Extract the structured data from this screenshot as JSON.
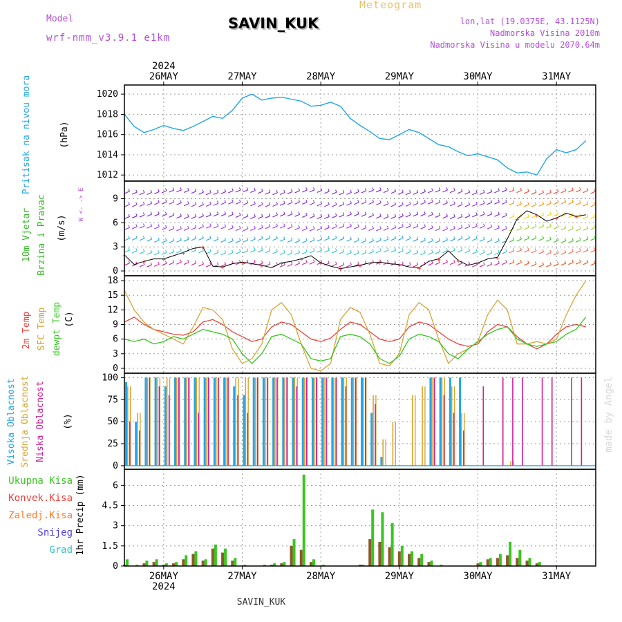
{
  "header": {
    "model_label": "Model",
    "model_name": "wrf-nmm_v3.9.1 e1km",
    "title": "SAVIN_KUK",
    "meteogram": "Meteogram",
    "lonlat": "lon,lat (19.0375E, 43.1125N)",
    "elevation": "Nadmorska Visina 2010m",
    "model_elevation": "Nadmorska Visina u modelu 2070.64m",
    "footer": "SAVIN_KUK",
    "watermark": "made by Angel",
    "year_top": "2024",
    "year_bottom": "2024"
  },
  "colors": {
    "pressure": "#1fa7e6",
    "t2m": "#e8413c",
    "tsfc": "#d9a531",
    "dewpt": "#33c61d",
    "high_cloud": "#22a6e8",
    "mid_cloud": "#d9a531",
    "low_cloud": "#cc1f9a",
    "total_precip": "#3ac620",
    "conv_precip": "#e8413c",
    "frozen_precip": "#ff7a25",
    "snow": "#4b40e0",
    "graupel": "#2ec4c4",
    "wind_label": "#34b824",
    "purple_text": "#b34fd9"
  },
  "chart_data": [
    {
      "type": "line",
      "name": "pressure",
      "ylabel_1": "Pritisak na nivou mora",
      "ylabel_unit": "(hPa)",
      "ylim": [
        1011.4,
        1020.9
      ],
      "yticks": [
        1012,
        1014,
        1016,
        1018,
        1020
      ],
      "x_start": "2024-05-25T12:00",
      "x_step_hours": 3,
      "series": [
        {
          "values": [
            1018.0,
            1016.8,
            1016.2,
            1016.5,
            1016.9,
            1016.6,
            1016.4,
            1016.8,
            1017.3,
            1017.8,
            1017.6,
            1018.4,
            1019.6,
            1020.0,
            1019.4,
            1019.6,
            1019.7,
            1019.5,
            1019.3,
            1018.8,
            1018.9,
            1019.2,
            1018.8,
            1017.6,
            1016.9,
            1016.3,
            1015.6,
            1015.5,
            1016.0,
            1016.5,
            1016.2,
            1015.6,
            1015.0,
            1014.8,
            1014.3,
            1013.9,
            1014.1,
            1013.8,
            1013.5,
            1012.7,
            1012.2,
            1012.3,
            1012.0,
            1013.6,
            1014.5,
            1014.2,
            1014.5,
            1015.4
          ]
        }
      ],
      "grid": true
    },
    {
      "type": "line",
      "name": "wind",
      "ylabel_1": "10m Vjetar",
      "ylabel_2": "Brzina i Pravac",
      "ylabel_unit": "(m/s)",
      "compass": "W <- -> E",
      "ylim": [
        -0.6,
        11.2
      ],
      "yticks": [
        0,
        3,
        6,
        9
      ],
      "x_start": "2024-05-25T12:00",
      "x_step_hours": 3,
      "series": [
        {
          "values": [
            2.0,
            0.8,
            1.2,
            1.5,
            1.5,
            1.9,
            2.3,
            2.8,
            3.0,
            0.6,
            0.5,
            0.9,
            1.1,
            0.9,
            0.7,
            0.4,
            1.0,
            1.2,
            1.5,
            1.9,
            1.0,
            0.6,
            0.3,
            0.5,
            0.7,
            1.0,
            1.1,
            0.9,
            0.8,
            0.5,
            0.4,
            1.2,
            1.5,
            2.5,
            1.3,
            0.7,
            1.0,
            1.5,
            1.7,
            4.0,
            6.5,
            7.5,
            7.0,
            6.2,
            6.6,
            7.2,
            6.8,
            7.0
          ]
        }
      ],
      "grid": true
    },
    {
      "type": "line",
      "name": "temperature",
      "ylabel_1": "2m Temp",
      "ylabel_2": "SFC Temp",
      "ylabel_3": "dewpt Temp",
      "ylabel_unit": "(C)",
      "ylim": [
        -1,
        19
      ],
      "yticks": [
        0,
        3,
        6,
        9,
        12,
        15,
        18
      ],
      "x_start": "2024-05-25T12:00",
      "x_step_hours": 3,
      "series": [
        {
          "name": "2m Temp",
          "values": [
            9.5,
            10.5,
            9.0,
            8.0,
            7.5,
            7.0,
            6.8,
            7.5,
            9.5,
            10.0,
            9.0,
            7.5,
            6.5,
            5.5,
            6.0,
            8.5,
            9.5,
            9.0,
            7.5,
            6.0,
            5.5,
            6.2,
            8.0,
            9.5,
            9.0,
            7.5,
            6.0,
            5.5,
            6.0,
            8.5,
            9.5,
            9.0,
            7.5,
            6.0,
            5.0,
            4.5,
            5.0,
            7.5,
            9.0,
            8.5,
            6.5,
            5.0,
            4.0,
            5.0,
            7.0,
            8.5,
            9.0,
            8.5
          ]
        },
        {
          "name": "SFC Temp",
          "values": [
            16.0,
            12.0,
            9.5,
            8.0,
            7.0,
            6.0,
            5.0,
            8.5,
            12.5,
            12.0,
            10.0,
            4.0,
            1.0,
            2.0,
            5.0,
            12.0,
            13.5,
            11.0,
            5.0,
            0.0,
            -0.5,
            1.0,
            10.0,
            12.5,
            11.5,
            7.0,
            1.0,
            0.5,
            3.0,
            11.0,
            13.5,
            12.0,
            6.0,
            1.0,
            3.0,
            4.0,
            5.5,
            11.0,
            14.0,
            12.0,
            5.0,
            5.0,
            5.5,
            5.0,
            6.0,
            11.0,
            15.0,
            18.0
          ]
        },
        {
          "name": "dewpt Temp",
          "values": [
            6.0,
            5.5,
            6.0,
            5.0,
            5.5,
            6.5,
            6.0,
            7.0,
            8.0,
            7.5,
            7.0,
            6.0,
            3.0,
            1.0,
            3.0,
            6.5,
            7.0,
            6.0,
            5.0,
            2.0,
            1.5,
            2.0,
            6.5,
            7.0,
            6.5,
            5.0,
            2.0,
            1.0,
            2.5,
            6.0,
            7.0,
            6.5,
            5.5,
            3.0,
            2.0,
            4.0,
            5.5,
            7.0,
            8.0,
            8.5,
            6.0,
            5.0,
            4.5,
            5.0,
            5.5,
            7.0,
            8.0,
            10.5
          ]
        }
      ],
      "grid": true
    },
    {
      "type": "bar",
      "name": "cloud",
      "ylabel_1": "Visoka Oblacnost",
      "ylabel_2": "Srednja Oblacnost",
      "ylabel_3": "Niska Oblacnost",
      "ylabel_unit": "(%)",
      "ylim": [
        -4,
        105
      ],
      "yticks": [
        0,
        25,
        50,
        75,
        100
      ],
      "x_start": "2024-05-25T12:00",
      "x_step_hours": 3,
      "series": [
        {
          "name": "Visoka Oblacnost",
          "values": [
            95,
            50,
            100,
            100,
            90,
            100,
            100,
            100,
            100,
            100,
            100,
            90,
            80,
            100,
            100,
            100,
            100,
            100,
            100,
            100,
            100,
            100,
            100,
            100,
            100,
            60,
            10,
            0,
            0,
            0,
            0,
            100,
            100,
            100,
            100,
            0,
            0,
            0,
            0,
            0,
            0,
            0,
            0,
            0,
            0,
            0,
            0,
            0
          ]
        },
        {
          "name": "Srednja Oblacnost",
          "values": [
            90,
            60,
            100,
            100,
            100,
            100,
            100,
            100,
            100,
            100,
            100,
            100,
            100,
            100,
            100,
            100,
            100,
            100,
            100,
            100,
            100,
            100,
            100,
            100,
            100,
            80,
            30,
            50,
            0,
            80,
            90,
            100,
            100,
            90,
            60,
            0,
            0,
            0,
            0,
            5,
            0,
            0,
            0,
            0,
            0,
            0,
            0,
            0
          ]
        },
        {
          "name": "Niska Oblacnost",
          "values": [
            50,
            40,
            100,
            90,
            80,
            100,
            100,
            60,
            100,
            100,
            100,
            80,
            60,
            100,
            100,
            100,
            100,
            90,
            100,
            100,
            100,
            100,
            90,
            100,
            100,
            70,
            0,
            0,
            0,
            0,
            0,
            100,
            80,
            60,
            40,
            0,
            90,
            0,
            100,
            100,
            100,
            0,
            100,
            100,
            0,
            100,
            100,
            0
          ]
        }
      ],
      "grid": true
    },
    {
      "type": "bar",
      "name": "precip",
      "ylabel_1": "Ukupna Kisa",
      "ylabel_2": "Konvek.Kisa",
      "ylabel_3": "Zaledj.Kisa",
      "ylabel_4": "Snijeg",
      "ylabel_5": "Grad",
      "ylabel_unit": "1hr Precip (mm)",
      "ylim": [
        0,
        7.2
      ],
      "yticks": [
        0,
        1.5,
        3,
        4.5,
        6
      ],
      "x_start": "2024-05-25T12:00",
      "x_step_hours": 3,
      "series": [
        {
          "name": "Ukupna Kisa",
          "values": [
            0.5,
            0.1,
            0.4,
            0.5,
            0.2,
            0.3,
            0.8,
            1.1,
            0.5,
            1.6,
            1.3,
            0.6,
            0.1,
            0.0,
            0.1,
            0.2,
            0.3,
            2.0,
            6.8,
            0.5,
            0.1,
            0.0,
            0.0,
            0.0,
            0.1,
            4.2,
            4.0,
            3.2,
            1.5,
            1.1,
            0.9,
            0.4,
            0.1,
            0.0,
            0.0,
            0.0,
            0.3,
            0.6,
            0.9,
            1.8,
            1.2,
            0.6,
            0.3,
            0.0,
            0.0,
            0.0,
            0.0,
            0.0
          ]
        },
        {
          "name": "Konvek.Kisa",
          "values": [
            0.1,
            0.0,
            0.2,
            0.3,
            0.1,
            0.2,
            0.5,
            0.9,
            0.4,
            1.3,
            1.0,
            0.4,
            0.0,
            0.0,
            0.0,
            0.1,
            0.2,
            1.5,
            1.2,
            0.3,
            0.0,
            0.0,
            0.0,
            0.0,
            0.1,
            2.0,
            1.8,
            1.4,
            1.1,
            0.9,
            0.6,
            0.3,
            0.0,
            0.0,
            0.0,
            0.0,
            0.2,
            0.5,
            0.6,
            0.8,
            0.6,
            0.4,
            0.2,
            0.0,
            0.0,
            0.0,
            0.0,
            0.0
          ]
        }
      ],
      "grid": true
    }
  ],
  "x_axis": {
    "top_labels": [
      "26MAY",
      "27MAY",
      "28MAY",
      "29MAY",
      "30MAY",
      "31MAY"
    ],
    "bottom_labels": [
      "26MAY",
      "27MAY",
      "28MAY",
      "29MAY",
      "30MAY",
      "31MAY"
    ]
  }
}
